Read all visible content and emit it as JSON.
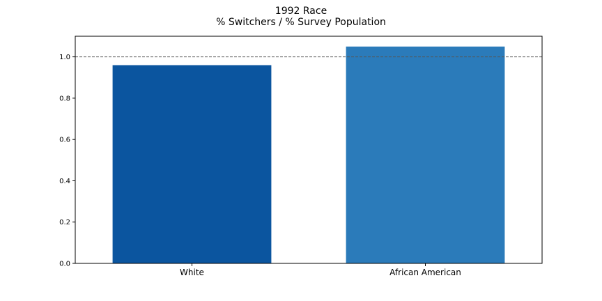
{
  "chart_data": {
    "type": "bar",
    "title": [
      "1992 Race",
      "% Switchers / % Survey Population"
    ],
    "categories": [
      "White",
      "African American"
    ],
    "values": [
      0.96,
      1.05
    ],
    "colors": [
      "#0b559f",
      "#2b7bba"
    ],
    "xlabel": "",
    "ylabel": "",
    "ylim": [
      0,
      1.1
    ],
    "yticks": [
      0.0,
      0.2,
      0.4,
      0.6,
      0.8,
      1.0
    ],
    "ytick_labels": [
      "0.0",
      "0.2",
      "0.4",
      "0.6",
      "0.8",
      "1.0"
    ],
    "reference_line": 1.0,
    "reference_line_color": "#555555",
    "grid": false,
    "legend": "none"
  }
}
